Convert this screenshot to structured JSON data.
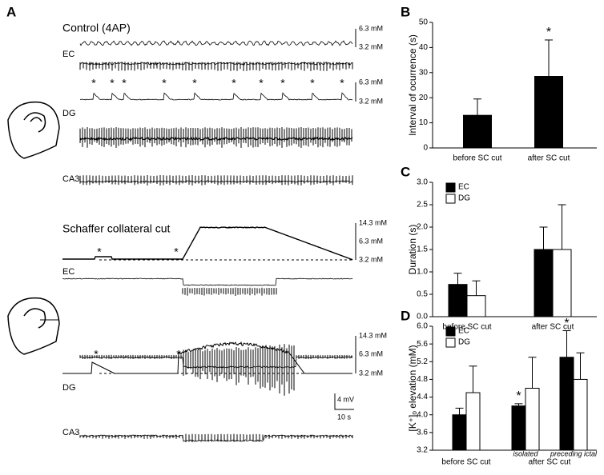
{
  "panel_a": {
    "label": "A",
    "control_title": "Control (4AP)",
    "control_rows": [
      "EC",
      "DG",
      "CA3"
    ],
    "control_k_labels": [
      "6.3 mM",
      "3.2 mM",
      "6.3 mM",
      "3.2 mM"
    ],
    "cut_title": "Schaffer collateral cut",
    "cut_rows": [
      "EC",
      "DG",
      "CA3"
    ],
    "cut_k_labels": [
      "14.3 mM",
      "6.3 mM",
      "3.2 mM",
      "14.3 mM",
      "6.3 mM",
      "3.2 mM"
    ],
    "scale_v": "4 mV",
    "scale_t": "10 s",
    "asterisk": "*"
  },
  "chart_data": [
    {
      "type": "bar",
      "label": "B",
      "ylabel": "Interval of ocurrence (s)",
      "categories": [
        "before SC cut",
        "after SC cut"
      ],
      "values": [
        13,
        28.5
      ],
      "errors": [
        6.5,
        14.5
      ],
      "color": "#000000",
      "significance_marker": "*",
      "significant": [
        false,
        true
      ],
      "ylim": [
        0,
        50
      ],
      "yticks": [
        0,
        10,
        20,
        30,
        40,
        50
      ]
    },
    {
      "type": "bar",
      "label": "C",
      "ylabel": "Duration (s)",
      "categories": [
        "before SC cut",
        "after SC cut"
      ],
      "series": [
        {
          "name": "EC",
          "color": "#000000",
          "values": [
            0.72,
            1.5
          ],
          "errors": [
            0.25,
            0.5
          ]
        },
        {
          "name": "DG",
          "color": "#ffffff",
          "values": [
            0.47,
            1.5
          ],
          "errors": [
            0.33,
            1.0
          ]
        }
      ],
      "ylim": [
        0,
        3.0
      ],
      "yticks": [
        {
          "value": 0,
          "label": "0.0"
        },
        0.5,
        {
          "value": 1,
          "label": "1.0"
        },
        1.5,
        {
          "value": 2,
          "label": "2.0"
        },
        2.5,
        {
          "value": 3,
          "label": "3.0"
        }
      ]
    },
    {
      "type": "bar",
      "label": "D",
      "ylabel": "[K⁺]ₒ elevation (mM)",
      "categories": [
        "before SC cut",
        "isolated",
        "preceding ictal"
      ],
      "group_label": "after SC cut",
      "series": [
        {
          "name": "EC",
          "color": "#000000",
          "values": [
            4.0,
            4.2,
            5.3
          ],
          "errors": [
            0.15,
            0.05,
            0.6
          ],
          "significant": [
            false,
            true,
            true
          ]
        },
        {
          "name": "DG",
          "color": "#ffffff",
          "values": [
            4.5,
            4.6,
            4.8
          ],
          "errors": [
            0.6,
            0.7,
            0.6
          ]
        }
      ],
      "significance_marker": "*",
      "ylim": [
        3.2,
        6.0
      ],
      "yticks": [
        3.2,
        3.6,
        {
          "value": 4,
          "label": "4.0"
        },
        4.4,
        4.8,
        5.2,
        5.6,
        {
          "value": 6,
          "label": "6.0"
        }
      ]
    }
  ]
}
